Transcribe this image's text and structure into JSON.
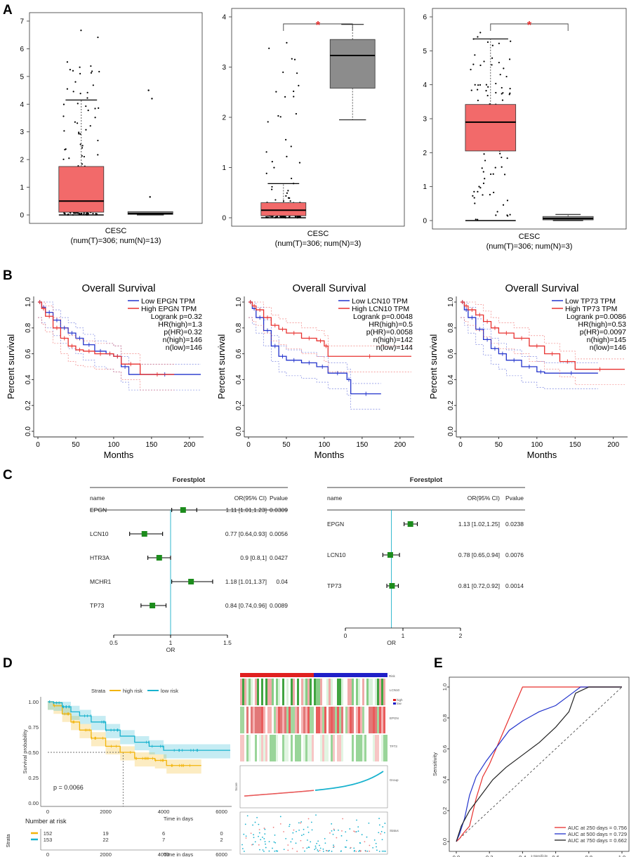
{
  "panels": {
    "A": "A",
    "B": "B",
    "C": "C",
    "D": "D",
    "E": "E"
  },
  "colors": {
    "tumor": "#f26a6a",
    "normal": "#8c8c8c",
    "red": "#e8302e",
    "blue": "#2233cc",
    "green": "#1c8c1c",
    "yellow": "#f2b40a",
    "cyan": "#18b2ce",
    "heat_red": "#e02020",
    "heat_blue": "#2020c8"
  },
  "boxplots": [
    {
      "ylim": [
        0,
        7
      ],
      "yticks": [
        0,
        1,
        2,
        3,
        4,
        5,
        6,
        7
      ],
      "xlabel_line1": "CESC",
      "xlabel_line2": "(num(T)=306; num(N)=13)",
      "tumor": {
        "q1": 0.1,
        "median": 0.5,
        "q3": 1.75,
        "whisker_low": 0,
        "whisker_high": 4.15,
        "max": 6.7
      },
      "normal": {
        "q1": 0.02,
        "median": 0.05,
        "q3": 0.12,
        "whisker_low": 0,
        "whisker_high": 0.12,
        "outliers": [
          0.65,
          4.2,
          4.5
        ]
      },
      "significance": ""
    },
    {
      "ylim": [
        0,
        4
      ],
      "yticks": [
        0,
        1,
        2,
        3,
        4
      ],
      "xlabel_line1": "CESC",
      "xlabel_line2": "(num(T)=306; num(N)=3)",
      "tumor": {
        "q1": 0.04,
        "median": 0.15,
        "q3": 0.3,
        "whisker_low": 0,
        "whisker_high": 0.68,
        "max": 3.7
      },
      "normal": {
        "q1": 2.58,
        "median": 3.23,
        "q3": 3.55,
        "whisker_low": 1.95,
        "whisker_high": 3.85,
        "outliers": []
      },
      "significance": "*"
    },
    {
      "ylim": [
        0,
        6
      ],
      "yticks": [
        0,
        1,
        2,
        3,
        4,
        5,
        6
      ],
      "xlabel_line1": "CESC",
      "xlabel_line2": "(num(T)=306; num(N)=3)",
      "tumor": {
        "q1": 2.05,
        "median": 2.9,
        "q3": 3.42,
        "whisker_low": 0,
        "whisker_high": 5.35,
        "max": 5.6
      },
      "normal": {
        "q1": 0.02,
        "median": 0.06,
        "q3": 0.12,
        "whisker_low": 0,
        "whisker_high": 0.18,
        "outliers": []
      },
      "significance": "*"
    }
  ],
  "survival": [
    {
      "title": "Overall Survival",
      "xlabel": "Months",
      "ylabel": "Percent survival",
      "xlim": [
        0,
        215
      ],
      "xticks": [
        0,
        50,
        100,
        150,
        200
      ],
      "ylim": [
        0,
        1
      ],
      "yticks": [
        "0.0",
        "0.2",
        "0.4",
        "0.6",
        "0.8",
        "1.0"
      ],
      "legend": [
        "Low EPGN TPM",
        "High EPGN TPM"
      ],
      "stats": [
        "Logrank p=0.32",
        "HR(high)=1.3",
        "p(HR)=0.32",
        "n(high)=146",
        "n(low)=146"
      ],
      "low": [
        [
          0,
          1
        ],
        [
          5,
          0.96
        ],
        [
          10,
          0.92
        ],
        [
          20,
          0.86
        ],
        [
          30,
          0.8
        ],
        [
          40,
          0.76
        ],
        [
          50,
          0.72
        ],
        [
          60,
          0.67
        ],
        [
          75,
          0.62
        ],
        [
          90,
          0.6
        ],
        [
          100,
          0.58
        ],
        [
          110,
          0.5
        ],
        [
          120,
          0.44
        ],
        [
          215,
          0.44
        ]
      ],
      "high": [
        [
          0,
          1
        ],
        [
          5,
          0.95
        ],
        [
          10,
          0.89
        ],
        [
          20,
          0.8
        ],
        [
          30,
          0.72
        ],
        [
          40,
          0.66
        ],
        [
          50,
          0.63
        ],
        [
          60,
          0.62
        ],
        [
          75,
          0.6
        ],
        [
          90,
          0.6
        ],
        [
          100,
          0.58
        ],
        [
          110,
          0.52
        ],
        [
          135,
          0.44
        ],
        [
          180,
          0.44
        ]
      ]
    },
    {
      "title": "Overall Survival",
      "xlabel": "Months",
      "ylabel": "Percent survival",
      "xlim": [
        0,
        215
      ],
      "xticks": [
        0,
        50,
        100,
        150,
        200
      ],
      "ylim": [
        0,
        1
      ],
      "yticks": [
        "0.0",
        "0.2",
        "0.4",
        "0.6",
        "0.8",
        "1.0"
      ],
      "legend": [
        "Low LCN10 TPM",
        "High LCN10 TPM"
      ],
      "stats": [
        "Logrank p=0.0048",
        "HR(high)=0.5",
        "p(HR)=0.0058",
        "n(high)=142",
        "n(low)=144"
      ],
      "low": [
        [
          0,
          1
        ],
        [
          5,
          0.95
        ],
        [
          10,
          0.88
        ],
        [
          20,
          0.78
        ],
        [
          30,
          0.66
        ],
        [
          40,
          0.58
        ],
        [
          50,
          0.55
        ],
        [
          70,
          0.53
        ],
        [
          90,
          0.5
        ],
        [
          105,
          0.45
        ],
        [
          130,
          0.4
        ],
        [
          135,
          0.29
        ],
        [
          175,
          0.29
        ]
      ],
      "high": [
        [
          0,
          1
        ],
        [
          5,
          0.97
        ],
        [
          10,
          0.94
        ],
        [
          20,
          0.88
        ],
        [
          30,
          0.82
        ],
        [
          40,
          0.79
        ],
        [
          50,
          0.76
        ],
        [
          70,
          0.72
        ],
        [
          90,
          0.7
        ],
        [
          100,
          0.66
        ],
        [
          105,
          0.58
        ],
        [
          215,
          0.58
        ]
      ]
    },
    {
      "title": "Overall Survival",
      "xlabel": "Months",
      "ylabel": "Percent survival",
      "xlim": [
        0,
        215
      ],
      "xticks": [
        0,
        50,
        100,
        150,
        200
      ],
      "ylim": [
        0,
        1
      ],
      "yticks": [
        "0.0",
        "0.2",
        "0.4",
        "0.6",
        "0.8",
        "1.0"
      ],
      "legend": [
        "Low TP73 TPM",
        "High TP73 TPM"
      ],
      "stats": [
        "Logrank p=0.0086",
        "HR(high)=0.53",
        "p(HR)=0.0097",
        "n(high)=145",
        "n(low)=146"
      ],
      "low": [
        [
          0,
          1
        ],
        [
          5,
          0.94
        ],
        [
          10,
          0.88
        ],
        [
          20,
          0.79
        ],
        [
          30,
          0.71
        ],
        [
          40,
          0.64
        ],
        [
          50,
          0.6
        ],
        [
          60,
          0.55
        ],
        [
          80,
          0.5
        ],
        [
          100,
          0.46
        ],
        [
          110,
          0.45
        ],
        [
          180,
          0.45
        ]
      ],
      "high": [
        [
          0,
          1
        ],
        [
          5,
          0.97
        ],
        [
          10,
          0.94
        ],
        [
          20,
          0.9
        ],
        [
          30,
          0.85
        ],
        [
          40,
          0.8
        ],
        [
          50,
          0.76
        ],
        [
          70,
          0.72
        ],
        [
          90,
          0.66
        ],
        [
          110,
          0.6
        ],
        [
          130,
          0.54
        ],
        [
          150,
          0.48
        ],
        [
          215,
          0.48
        ]
      ]
    }
  ],
  "forest_left": {
    "title": "Forestplot",
    "headers": [
      "name",
      "OR(95% CI)",
      "Pvalue"
    ],
    "xlabel": "OR",
    "xlim": [
      0.5,
      1.5
    ],
    "xticks": [
      "0.5",
      "1",
      "1.5"
    ],
    "ref": 1,
    "rows": [
      {
        "name": "EPGN",
        "or": 1.11,
        "lo": 1.01,
        "hi": 1.23,
        "or_text": "1.11 [1.01,1.23]",
        "p": "0.0309"
      },
      {
        "name": "LCN10",
        "or": 0.77,
        "lo": 0.64,
        "hi": 0.93,
        "or_text": "0.77 [0.64,0.93]",
        "p": "0.0056"
      },
      {
        "name": "HTR3A",
        "or": 0.9,
        "lo": 0.8,
        "hi": 1.0,
        "or_text": "0.9 [0.8,1]",
        "p": "0.0427"
      },
      {
        "name": "MCHR1",
        "or": 1.18,
        "lo": 1.01,
        "hi": 1.37,
        "or_text": "1.18 [1.01,1.37]",
        "p": "0.04"
      },
      {
        "name": "TP73",
        "or": 0.84,
        "lo": 0.74,
        "hi": 0.96,
        "or_text": "0.84 [0.74,0.96]",
        "p": "0.0089"
      }
    ]
  },
  "forest_right": {
    "title": "Forestplot",
    "headers": [
      "name",
      "OR(95% CI)",
      "Pvalue"
    ],
    "xlabel": "OR",
    "xlim": [
      0,
      2
    ],
    "xticks": [
      "0",
      "1",
      "2"
    ],
    "ref": 0.8,
    "rows": [
      {
        "name": "EPGN",
        "or": 1.13,
        "lo": 1.02,
        "hi": 1.25,
        "or_text": "1.13 [1.02,1.25]",
        "p": "0.0238"
      },
      {
        "name": "LCN10",
        "or": 0.78,
        "lo": 0.65,
        "hi": 0.94,
        "or_text": "0.78 [0.65,0.94]",
        "p": "0.0076"
      },
      {
        "name": "TP73",
        "or": 0.81,
        "lo": 0.72,
        "hi": 0.92,
        "or_text": "0.81 [0.72,0.92]",
        "p": "0.0014"
      }
    ]
  },
  "km_risk": {
    "strata_label": "Strata",
    "legend": [
      "high risk",
      "low risk"
    ],
    "ylabel": "Survival probability",
    "xlabel": "Time in days",
    "pvalue": "p = 0.0066",
    "yticks": [
      "0.00",
      "0.25",
      "0.50",
      "0.75",
      "1.00"
    ],
    "xticks": [
      "0",
      "2000",
      "4000",
      "6000"
    ],
    "xlim": [
      0,
      6300
    ],
    "high": [
      [
        0,
        1
      ],
      [
        200,
        0.96
      ],
      [
        500,
        0.88
      ],
      [
        800,
        0.8
      ],
      [
        1100,
        0.72
      ],
      [
        1500,
        0.64
      ],
      [
        2000,
        0.56
      ],
      [
        2500,
        0.5
      ],
      [
        3000,
        0.44
      ],
      [
        3700,
        0.42
      ],
      [
        4100,
        0.37
      ],
      [
        5300,
        0.37
      ]
    ],
    "low": [
      [
        0,
        1
      ],
      [
        200,
        0.99
      ],
      [
        500,
        0.95
      ],
      [
        800,
        0.9
      ],
      [
        1100,
        0.86
      ],
      [
        1500,
        0.8
      ],
      [
        2000,
        0.72
      ],
      [
        2500,
        0.66
      ],
      [
        3000,
        0.6
      ],
      [
        3500,
        0.56
      ],
      [
        4000,
        0.52
      ],
      [
        6300,
        0.52
      ]
    ],
    "risk_title": "Number at risk",
    "risk_rows": [
      [
        "152",
        "19",
        "6",
        "0"
      ],
      [
        "153",
        "22",
        "7",
        "2"
      ]
    ]
  },
  "risk_panel": {
    "genes": [
      "LCN10",
      "EPGN",
      "TP73"
    ],
    "legend_labels": [
      "Risk",
      "high",
      "low"
    ],
    "score_label": "Score",
    "group_label": "Group",
    "status_label": "Status"
  },
  "roc": {
    "xlabel": "1-Specificity",
    "ylabel": "Sensitivity",
    "ticks": [
      "0.0",
      "0.2",
      "0.4",
      "0.6",
      "0.8",
      "1.0"
    ],
    "curves": [
      {
        "label": "AUC at 250 days = 0.756",
        "color": "#e8302e",
        "points": [
          [
            0,
            0
          ],
          [
            0.02,
            0.02
          ],
          [
            0.04,
            0.05
          ],
          [
            0.08,
            0.1
          ],
          [
            0.12,
            0.28
          ],
          [
            0.16,
            0.42
          ],
          [
            0.2,
            0.5
          ],
          [
            0.24,
            0.6
          ],
          [
            0.28,
            0.7
          ],
          [
            0.32,
            0.8
          ],
          [
            0.36,
            0.9
          ],
          [
            0.4,
            1
          ],
          [
            0.45,
            1
          ],
          [
            1,
            1
          ]
        ]
      },
      {
        "label": "AUC at 500 days = 0.729",
        "color": "#2233cc",
        "points": [
          [
            0,
            0
          ],
          [
            0.02,
            0.05
          ],
          [
            0.05,
            0.15
          ],
          [
            0.08,
            0.3
          ],
          [
            0.12,
            0.42
          ],
          [
            0.18,
            0.52
          ],
          [
            0.25,
            0.62
          ],
          [
            0.32,
            0.72
          ],
          [
            0.4,
            0.78
          ],
          [
            0.5,
            0.84
          ],
          [
            0.6,
            0.88
          ],
          [
            0.7,
            0.96
          ],
          [
            0.75,
            1
          ],
          [
            1,
            1
          ]
        ]
      },
      {
        "label": "AUC at 750 days = 0.662",
        "color": "#222222",
        "points": [
          [
            0,
            0
          ],
          [
            0.03,
            0.1
          ],
          [
            0.08,
            0.2
          ],
          [
            0.15,
            0.3
          ],
          [
            0.22,
            0.4
          ],
          [
            0.3,
            0.48
          ],
          [
            0.4,
            0.56
          ],
          [
            0.5,
            0.64
          ],
          [
            0.6,
            0.74
          ],
          [
            0.68,
            0.84
          ],
          [
            0.72,
            0.96
          ],
          [
            0.8,
            1
          ],
          [
            1,
            1
          ]
        ]
      }
    ]
  }
}
